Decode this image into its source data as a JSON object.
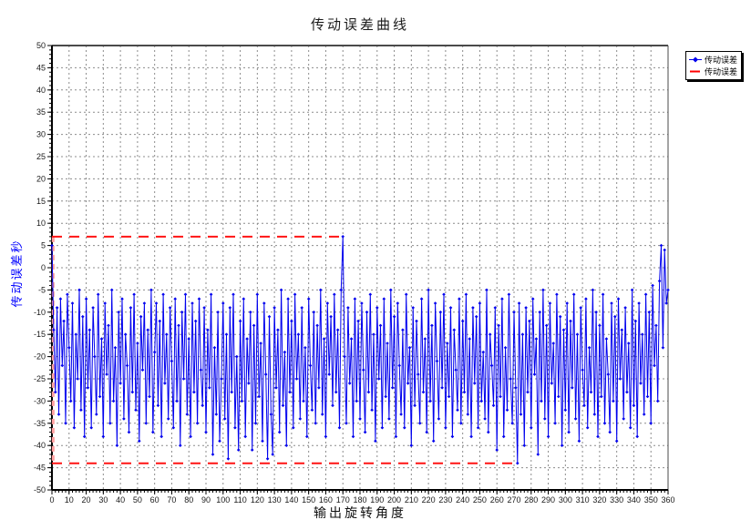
{
  "header": {
    "title": "传动误差曲线"
  },
  "legend": {
    "items": [
      {
        "label": "传动误差",
        "marker": "diamond-on-line",
        "color": "#0000ee"
      },
      {
        "label": "传动误差",
        "marker": "dash",
        "color": "#ff0000"
      }
    ]
  },
  "chart_data": {
    "type": "line",
    "title": "传动误差曲线",
    "xlabel": "输出旋转角度",
    "ylabel": "传动误差秒",
    "xlim": [
      0,
      360
    ],
    "ylim": [
      -50,
      50
    ],
    "x_major": 10,
    "x_minor": 2,
    "y_major": 5,
    "y_minor": 1,
    "grid": true,
    "legend_position": "top-right-outside",
    "series_name": "传动误差",
    "x_start": 0,
    "x_step": 1,
    "values": [
      5,
      -14,
      -28,
      -9,
      -33,
      -7,
      -22,
      -12,
      -35,
      -6,
      -18,
      -30,
      -8,
      -36,
      -15,
      -25,
      -5,
      -32,
      -11,
      -38,
      -7,
      -27,
      -14,
      -36,
      -9,
      -20,
      -33,
      -6,
      -29,
      -16,
      -38,
      -8,
      -24,
      -13,
      -35,
      -5,
      -30,
      -18,
      -40,
      -10,
      -26,
      -7,
      -34,
      -15,
      -22,
      -37,
      -9,
      -28,
      -6,
      -32,
      -17,
      -39,
      -11,
      -23,
      -8,
      -35,
      -14,
      -29,
      -5,
      -37,
      -19,
      -8,
      -31,
      -12,
      -38,
      -6,
      -26,
      -15,
      -34,
      -9,
      -21,
      -36,
      -7,
      -30,
      -13,
      -40,
      -10,
      -25,
      -6,
      -33,
      -16,
      -38,
      -8,
      -28,
      -12,
      -35,
      -7,
      -23,
      -31,
      -9,
      -37,
      -14,
      -27,
      -6,
      -42,
      -18,
      -33,
      -10,
      -39,
      -25,
      -8,
      -34,
      -15,
      -43,
      -9,
      -28,
      -6,
      -36,
      -20,
      -41,
      -12,
      -30,
      -7,
      -38,
      -16,
      -26,
      -10,
      -41,
      -13,
      -35,
      -6,
      -29,
      -17,
      -39,
      -8,
      -24,
      -43,
      -11,
      -33,
      -42,
      -9,
      -27,
      -14,
      -37,
      -5,
      -31,
      -19,
      -40,
      -7,
      -28,
      -12,
      -36,
      -6,
      -25,
      -15,
      -34,
      -9,
      -30,
      -18,
      -38,
      -7,
      -22,
      -32,
      -10,
      -35,
      -13,
      -27,
      -5,
      -33,
      -16,
      -38,
      -8,
      -24,
      -11,
      -31,
      -6,
      -28,
      -14,
      -36,
      -5,
      7,
      -20,
      -35,
      -9,
      -26,
      -16,
      -38,
      -7,
      -30,
      -12,
      -34,
      -8,
      -23,
      -37,
      -10,
      -28,
      -6,
      -32,
      -15,
      -39,
      -9,
      -25,
      -13,
      -36,
      -7,
      -29,
      -17,
      -34,
      -5,
      -27,
      -11,
      -38,
      -8,
      -22,
      -33,
      -14,
      -36,
      -6,
      -26,
      -18,
      -40,
      -9,
      -31,
      -12,
      -24,
      -35,
      -7,
      -28,
      -16,
      -37,
      -5,
      -30,
      -13,
      -39,
      -8,
      -21,
      -34,
      -10,
      -27,
      -6,
      -36,
      -17,
      -29,
      -9,
      -38,
      -14,
      -23,
      -32,
      -7,
      -35,
      -12,
      -28,
      -6,
      -33,
      -16,
      -38,
      -9,
      -26,
      -11,
      -36,
      -8,
      -30,
      -19,
      -34,
      -5,
      -37,
      -15,
      -22,
      -31,
      -9,
      -41,
      -13,
      -29,
      -7,
      -38,
      -18,
      -32,
      -6,
      -25,
      -35,
      -10,
      -27,
      -44,
      -8,
      -33,
      -15,
      -40,
      -9,
      -28,
      -12,
      -36,
      -7,
      -24,
      -16,
      -42,
      -10,
      -30,
      -5,
      -34,
      -13,
      -38,
      -8,
      -26,
      -17,
      -35,
      -6,
      -29,
      -11,
      -40,
      -14,
      -32,
      -8,
      -37,
      -12,
      -27,
      -6,
      -34,
      -15,
      -39,
      -9,
      -23,
      -31,
      -7,
      -36,
      -18,
      -28,
      -5,
      -33,
      -10,
      -38,
      -13,
      -29,
      -6,
      -35,
      -16,
      -24,
      -37,
      -8,
      -30,
      -11,
      -39,
      -7,
      -25,
      -14,
      -34,
      -9,
      -28,
      -17,
      -36,
      -5,
      -31,
      -12,
      -38,
      -8,
      -26,
      -15,
      -33,
      -6,
      -29,
      -10,
      -35,
      -4,
      -22,
      -13,
      -30,
      -3,
      5,
      -18,
      4,
      -8,
      -5
    ],
    "limit_lines": {
      "max": {
        "y": 7,
        "x_from": 0,
        "x_to": 171
      },
      "min": {
        "y": -44,
        "x_from": 0,
        "x_to": 273
      },
      "vertical": {
        "x": 0.7,
        "y_from": -44,
        "y_to": 7
      }
    },
    "colors": {
      "series": "#0000ee",
      "limit": "#ff1414",
      "limit_light": "#ffa0a0",
      "grid": "#8c8c8c",
      "axis": "#000000",
      "frame": "#4a4a4a",
      "tick_text": "#1a1a1a",
      "ylabel": "#0000ff"
    }
  }
}
